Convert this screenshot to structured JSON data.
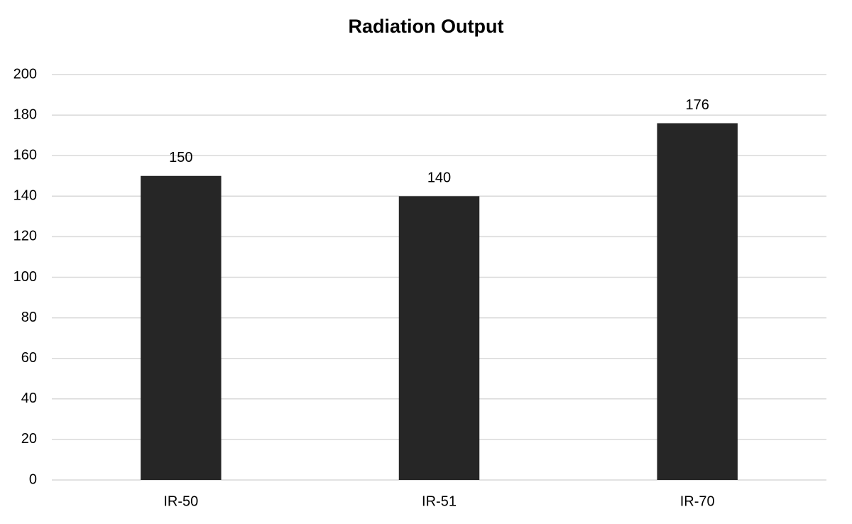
{
  "chart_data": {
    "type": "bar",
    "title": "Radiation Output",
    "categories": [
      "IR-50",
      "IR-51",
      "IR-70"
    ],
    "values": [
      150,
      140,
      176
    ],
    "color": "#262626",
    "show_value_labels": true,
    "ylim": [
      0,
      200
    ],
    "yticks": [
      0,
      20,
      40,
      60,
      80,
      100,
      120,
      140,
      160,
      180,
      200
    ],
    "grid": true
  }
}
